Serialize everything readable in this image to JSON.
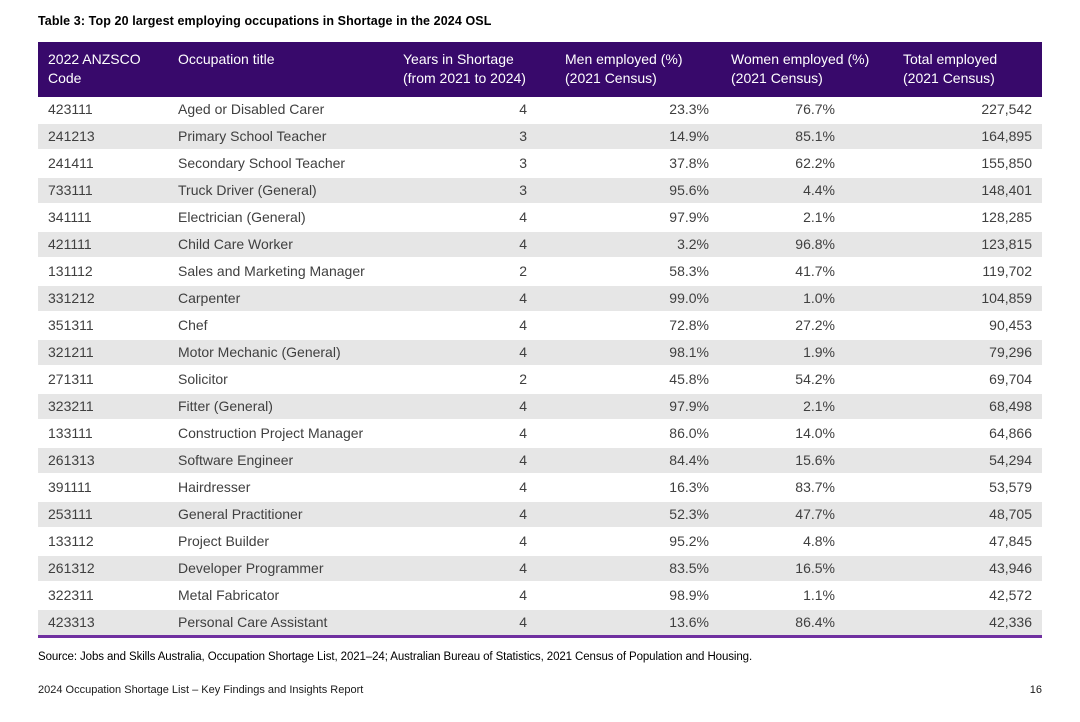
{
  "title": "Table 3: Top 20 largest employing occupations in Shortage in the 2024 OSL",
  "table": {
    "columns": [
      "2022 ANZSCO\nCode",
      "Occupation title",
      "Years in Shortage\n(from 2021 to 2024)",
      "Men employed (%)\n(2021 Census)",
      "Women employed (%)\n(2021 Census)",
      "Total employed\n(2021 Census)"
    ],
    "col_keys": [
      "anzsco-code",
      "occupation-title",
      "years-in-shortage",
      "men-employed-pct",
      "women-employed-pct",
      "total-employed"
    ],
    "rows": [
      [
        "423111",
        "Aged or Disabled Carer",
        "4",
        "23.3%",
        "76.7%",
        "227,542"
      ],
      [
        "241213",
        "Primary School Teacher",
        "3",
        "14.9%",
        "85.1%",
        "164,895"
      ],
      [
        "241411",
        "Secondary School Teacher",
        "3",
        "37.8%",
        "62.2%",
        "155,850"
      ],
      [
        "733111",
        "Truck Driver (General)",
        "3",
        "95.6%",
        "4.4%",
        "148,401"
      ],
      [
        "341111",
        "Electrician (General)",
        "4",
        "97.9%",
        "2.1%",
        "128,285"
      ],
      [
        "421111",
        "Child Care Worker",
        "4",
        "3.2%",
        "96.8%",
        "123,815"
      ],
      [
        "131112",
        "Sales and Marketing Manager",
        "2",
        "58.3%",
        "41.7%",
        "119,702"
      ],
      [
        "331212",
        "Carpenter",
        "4",
        "99.0%",
        "1.0%",
        "104,859"
      ],
      [
        "351311",
        "Chef",
        "4",
        "72.8%",
        "27.2%",
        "90,453"
      ],
      [
        "321211",
        "Motor Mechanic (General)",
        "4",
        "98.1%",
        "1.9%",
        "79,296"
      ],
      [
        "271311",
        "Solicitor",
        "2",
        "45.8%",
        "54.2%",
        "69,704"
      ],
      [
        "323211",
        "Fitter (General)",
        "4",
        "97.9%",
        "2.1%",
        "68,498"
      ],
      [
        "133111",
        "Construction Project Manager",
        "4",
        "86.0%",
        "14.0%",
        "64,866"
      ],
      [
        "261313",
        "Software Engineer",
        "4",
        "84.4%",
        "15.6%",
        "54,294"
      ],
      [
        "391111",
        "Hairdresser",
        "4",
        "16.3%",
        "83.7%",
        "53,579"
      ],
      [
        "253111",
        "General Practitioner",
        "4",
        "52.3%",
        "47.7%",
        "48,705"
      ],
      [
        "133112",
        "Project Builder",
        "4",
        "95.2%",
        "4.8%",
        "47,845"
      ],
      [
        "261312",
        "Developer Programmer",
        "4",
        "83.5%",
        "16.5%",
        "43,946"
      ],
      [
        "322311",
        "Metal Fabricator",
        "4",
        "98.9%",
        "1.1%",
        "42,572"
      ],
      [
        "423313",
        "Personal Care Assistant",
        "4",
        "13.6%",
        "86.4%",
        "42,336"
      ]
    ]
  },
  "source": "Source: Jobs and Skills Australia, Occupation Shortage List, 2021–24; Australian Bureau of Statistics, 2021 Census of Population and Housing.",
  "footer": {
    "document_title": "2024 Occupation Shortage List – Key Findings and Insights Report",
    "page_number": "16"
  },
  "colors": {
    "header_bg": "#38096B",
    "header_text": "#FFFFFF",
    "row_alt": "#E6E6E6",
    "table_rule": "#7030A0",
    "body_text": "#3F3F3F"
  }
}
